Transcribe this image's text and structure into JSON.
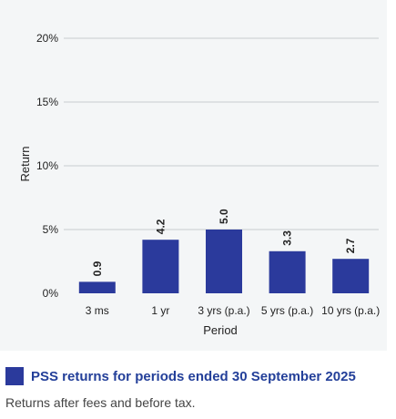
{
  "chart_data": {
    "type": "bar",
    "title": "",
    "xlabel": "Period",
    "ylabel": "Return",
    "categories": [
      "3 ms",
      "1 yr",
      "3 yrs (p.a.)",
      "5 yrs (p.a.)",
      "10 yrs (p.a.)"
    ],
    "values": [
      0.9,
      4.2,
      5.0,
      3.3,
      2.7
    ],
    "data_labels": [
      "0.9",
      "4.2",
      "5.0",
      "3.3",
      "2.7"
    ],
    "ylim": [
      0,
      20
    ],
    "yticks": [
      0,
      5,
      10,
      15,
      20
    ],
    "ytick_labels": [
      "0%",
      "5%",
      "10%",
      "15%",
      "20%"
    ],
    "grid": true,
    "bar_color": "#2b3a9c",
    "grid_color": "#c8cccf"
  },
  "caption": {
    "title": "PSS returns for periods ended 30 September 2025",
    "note": "Returns after fees and before tax."
  },
  "colors": {
    "panel_bg": "#f4f6f7",
    "caption_title": "#233f99"
  }
}
